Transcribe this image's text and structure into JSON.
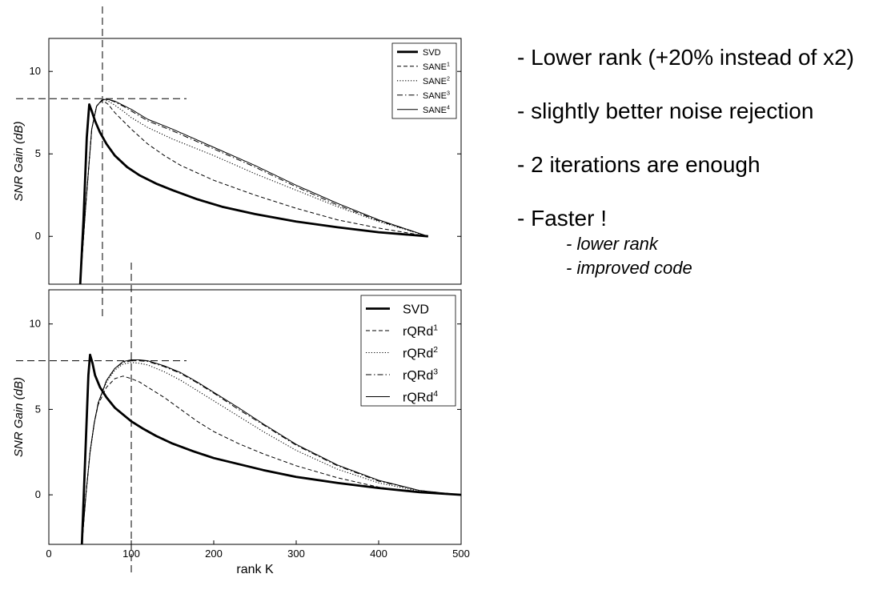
{
  "bullets": [
    "- Lower rank (+20% instead of x2)",
    "- slightly better noise rejection",
    "- 2 iterations are enough",
    "- Faster !"
  ],
  "sub_bullets": [
    "- lower rank",
    "- improved code"
  ],
  "chart_data": [
    {
      "type": "line",
      "ylabel": "SNR Gain (dB)",
      "xlabel": "",
      "xlim": [
        0,
        500
      ],
      "ylim": [
        -2.9,
        12.0
      ],
      "yticks": [
        0,
        5,
        10
      ],
      "x_tick_labels": [],
      "grid": false,
      "legend_position": "top-right",
      "reference_lines": {
        "x": 65,
        "y": 8.35
      },
      "series": [
        {
          "name": "SVD",
          "style": "solid-thick",
          "x": [
            38,
            42,
            46,
            49,
            52,
            56,
            62,
            70,
            80,
            95,
            110,
            130,
            150,
            180,
            210,
            250,
            300,
            350,
            400,
            460
          ],
          "values": [
            -3,
            1,
            6,
            8.0,
            7.6,
            7.0,
            6.3,
            5.6,
            4.9,
            4.2,
            3.7,
            3.2,
            2.8,
            2.25,
            1.8,
            1.35,
            0.9,
            0.55,
            0.25,
            0
          ]
        },
        {
          "name": "SANE1",
          "style": "dashed",
          "x": [
            38,
            45,
            52,
            58,
            65,
            72,
            80,
            90,
            100,
            120,
            140,
            160,
            200,
            250,
            300,
            350,
            400,
            460
          ],
          "values": [
            -3,
            2,
            6.5,
            7.9,
            8.25,
            8.0,
            7.5,
            7.0,
            6.5,
            5.6,
            4.9,
            4.3,
            3.4,
            2.5,
            1.7,
            1.0,
            0.5,
            0
          ]
        },
        {
          "name": "SANE2",
          "style": "dotted",
          "x": [
            38,
            45,
            52,
            58,
            65,
            72,
            80,
            90,
            100,
            120,
            150,
            200,
            250,
            300,
            350,
            400,
            460
          ],
          "values": [
            -3,
            2,
            6.5,
            7.9,
            8.3,
            8.2,
            7.95,
            7.6,
            7.2,
            6.6,
            5.9,
            4.9,
            3.8,
            2.8,
            1.8,
            0.9,
            0
          ]
        },
        {
          "name": "SANE3",
          "style": "dashdot",
          "x": [
            38,
            45,
            52,
            58,
            65,
            72,
            80,
            90,
            100,
            120,
            150,
            200,
            250,
            300,
            350,
            400,
            460
          ],
          "values": [
            -3,
            2,
            6.5,
            7.9,
            8.3,
            8.3,
            8.15,
            7.9,
            7.6,
            7.0,
            6.4,
            5.3,
            4.2,
            3.0,
            1.9,
            0.95,
            0
          ]
        },
        {
          "name": "SANE4",
          "style": "solid-thin",
          "x": [
            38,
            45,
            52,
            58,
            65,
            72,
            80,
            90,
            100,
            120,
            150,
            200,
            250,
            300,
            350,
            400,
            460
          ],
          "values": [
            -3,
            2,
            6.5,
            7.9,
            8.3,
            8.3,
            8.2,
            7.95,
            7.7,
            7.1,
            6.5,
            5.4,
            4.3,
            3.1,
            2.0,
            1.0,
            0
          ]
        }
      ]
    },
    {
      "type": "line",
      "ylabel": "SNR Gain (dB)",
      "xlabel": "rank K",
      "xlim": [
        0,
        500
      ],
      "ylim": [
        -2.9,
        12.0
      ],
      "yticks": [
        0,
        5,
        10
      ],
      "xticks": [
        0,
        100,
        200,
        300,
        400,
        500
      ],
      "grid": false,
      "legend_position": "top-right",
      "reference_lines": {
        "x": 100,
        "y": 7.85
      },
      "series": [
        {
          "name": "SVD",
          "style": "solid-thick",
          "x": [
            40,
            44,
            48,
            50,
            53,
            56,
            62,
            70,
            80,
            90,
            100,
            115,
            130,
            150,
            175,
            200,
            230,
            260,
            300,
            350,
            400,
            450,
            500
          ],
          "values": [
            -3,
            2,
            7,
            8.2,
            7.7,
            7.0,
            6.3,
            5.7,
            5.1,
            4.7,
            4.3,
            3.85,
            3.45,
            3.0,
            2.55,
            2.15,
            1.8,
            1.45,
            1.05,
            0.7,
            0.4,
            0.15,
            0
          ]
        },
        {
          "name": "rQRd1",
          "style": "dashed",
          "x": [
            40,
            45,
            50,
            55,
            60,
            70,
            80,
            90,
            100,
            110,
            120,
            140,
            160,
            180,
            200,
            230,
            260,
            300,
            350,
            400,
            450,
            500
          ],
          "values": [
            -3,
            0,
            2.5,
            4.2,
            5.3,
            6.3,
            6.8,
            6.95,
            6.8,
            6.6,
            6.3,
            5.7,
            5.0,
            4.3,
            3.7,
            3.0,
            2.4,
            1.7,
            1.0,
            0.45,
            0.12,
            0
          ]
        },
        {
          "name": "rQRd2",
          "style": "dotted",
          "x": [
            40,
            45,
            50,
            55,
            60,
            70,
            80,
            90,
            100,
            110,
            120,
            140,
            160,
            180,
            200,
            230,
            260,
            300,
            350,
            400,
            450,
            500
          ],
          "values": [
            -3,
            0,
            2.5,
            4.2,
            5.4,
            6.6,
            7.3,
            7.65,
            7.75,
            7.7,
            7.6,
            7.2,
            6.7,
            6.1,
            5.5,
            4.6,
            3.7,
            2.6,
            1.5,
            0.7,
            0.2,
            0
          ]
        },
        {
          "name": "rQRd3",
          "style": "dashdot",
          "x": [
            40,
            45,
            50,
            55,
            60,
            70,
            80,
            90,
            100,
            110,
            120,
            140,
            160,
            180,
            200,
            230,
            260,
            300,
            350,
            400,
            450,
            500
          ],
          "values": [
            -3,
            0,
            2.5,
            4.2,
            5.4,
            6.7,
            7.4,
            7.75,
            7.85,
            7.85,
            7.8,
            7.5,
            7.1,
            6.55,
            5.95,
            5.0,
            4.1,
            2.9,
            1.7,
            0.8,
            0.25,
            0
          ]
        },
        {
          "name": "rQRd4",
          "style": "solid-thin",
          "x": [
            40,
            45,
            50,
            55,
            60,
            70,
            80,
            90,
            100,
            110,
            120,
            140,
            160,
            180,
            200,
            230,
            260,
            300,
            350,
            400,
            450,
            500
          ],
          "values": [
            -3,
            0,
            2.5,
            4.2,
            5.4,
            6.7,
            7.4,
            7.8,
            7.9,
            7.9,
            7.85,
            7.55,
            7.15,
            6.6,
            6.0,
            5.1,
            4.15,
            2.95,
            1.75,
            0.85,
            0.25,
            0
          ]
        }
      ]
    }
  ]
}
